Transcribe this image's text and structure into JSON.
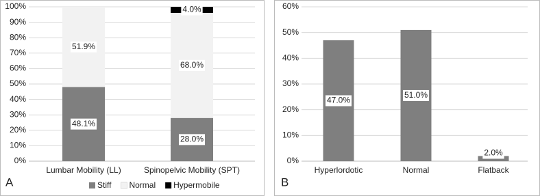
{
  "chart_data": [
    {
      "type": "stacked_bar",
      "panel_label": "A",
      "categories": [
        "Lumbar Mobility (LL)",
        "Spinopelvic Mobility (SPT)"
      ],
      "series": [
        {
          "name": "Stiff",
          "color": "#7f7f7f",
          "values": [
            48.1,
            28.0
          ],
          "value_labels": [
            "48.1%",
            "28.0%"
          ]
        },
        {
          "name": "Normal",
          "color": "#f2f2f2",
          "values": [
            51.9,
            68.0
          ],
          "value_labels": [
            "51.9%",
            "68.0%"
          ]
        },
        {
          "name": "Hypermobile",
          "color": "#000000",
          "values": [
            0,
            4.0
          ],
          "value_labels": [
            null,
            "4.0%"
          ]
        }
      ],
      "ylim": [
        0,
        100
      ],
      "yticks": [
        {
          "value": 0,
          "label": "0%"
        },
        {
          "value": 10,
          "label": "10%"
        },
        {
          "value": 20,
          "label": "20%"
        },
        {
          "value": 30,
          "label": "30%"
        },
        {
          "value": 40,
          "label": "40%"
        },
        {
          "value": 50,
          "label": "50%"
        },
        {
          "value": 60,
          "label": "60%"
        },
        {
          "value": 70,
          "label": "70%"
        },
        {
          "value": 80,
          "label": "80%"
        },
        {
          "value": 90,
          "label": "90%"
        },
        {
          "value": 100,
          "label": "100%"
        }
      ],
      "grid": true,
      "legend": "bottom"
    },
    {
      "type": "bar",
      "panel_label": "B",
      "categories": [
        "Hyperlordotic",
        "Normal",
        "Flatback"
      ],
      "values": [
        47.0,
        51.0,
        2.0
      ],
      "value_labels": [
        "47.0%",
        "51.0%",
        "2.0%"
      ],
      "color": "#7f7f7f",
      "ylim": [
        0,
        60
      ],
      "yticks": [
        {
          "value": 0,
          "label": "0%"
        },
        {
          "value": 10,
          "label": "10%"
        },
        {
          "value": 20,
          "label": "20%"
        },
        {
          "value": 30,
          "label": "30%"
        },
        {
          "value": 40,
          "label": "40%"
        },
        {
          "value": 50,
          "label": "50%"
        },
        {
          "value": 60,
          "label": "60%"
        }
      ],
      "grid": true
    }
  ]
}
